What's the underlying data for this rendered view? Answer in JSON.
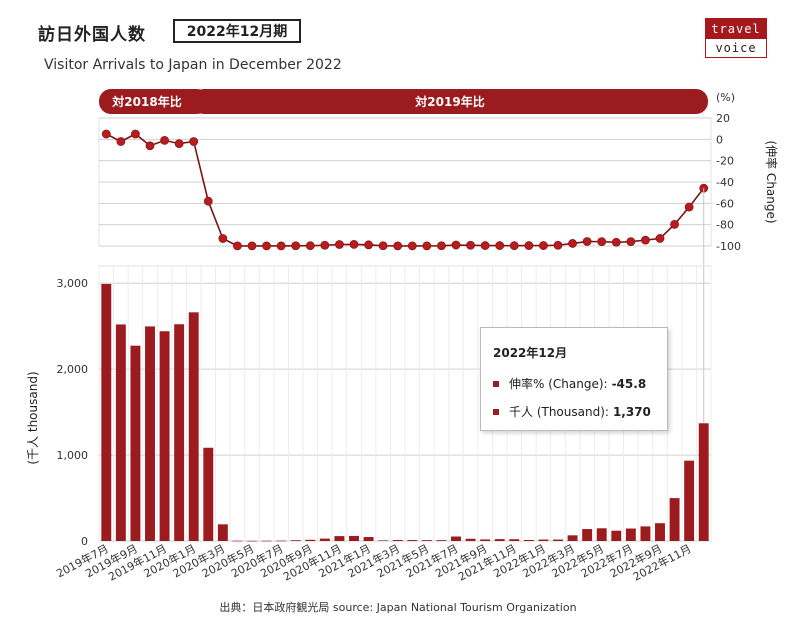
{
  "header": {
    "title_jp": "訪日外国人数",
    "period": "2022年12月期",
    "title_en": "Visitor Arrivals to Japan in December 2022"
  },
  "logo": {
    "line1": "travel",
    "line2": "voice"
  },
  "source": "出典：日本政府観光局  source: Japan National Tourism Organization",
  "tooltip": {
    "title": "2022年12月",
    "change_label": "伸率% (Change):",
    "change_value": "-45.8",
    "thousand_label": "千人 (Thousand):",
    "thousand_value": "1,370"
  },
  "colors": {
    "accent": "#9b1b1e",
    "line": "#7a1416",
    "grid": "#d0d0d0"
  },
  "chart_data": [
    {
      "type": "line",
      "banners": [
        "対2018年比",
        "対2019年比"
      ],
      "yunit": "(%)",
      "ylabel": "(伸率 Change)",
      "ylim": [
        -100,
        20
      ],
      "yticks": [
        20,
        0,
        -20,
        -40,
        -60,
        -80,
        -100
      ],
      "values": [
        5,
        -2,
        5,
        -6,
        -1,
        -4,
        -2,
        -58,
        -93,
        -99.9,
        -99.9,
        -99.9,
        -99.9,
        -99.8,
        -99.7,
        -99.3,
        -98.6,
        -98.5,
        -98.9,
        -99.8,
        -99.9,
        -99.9,
        -99.9,
        -99.8,
        -99.1,
        -99.3,
        -99.6,
        -99.6,
        -99.7,
        -99.6,
        -99.6,
        -99.3,
        -97.6,
        -95.8,
        -95.9,
        -96.5,
        -95.9,
        -94.5,
        -92.9,
        -79.7,
        -63.5,
        -45.8
      ]
    },
    {
      "type": "bar",
      "ylabel": "(千人 thousand)",
      "ylim": [
        0,
        3200
      ],
      "yticks": [
        "3,000",
        "2,000",
        "1,000",
        "0"
      ],
      "ytick_values": [
        3000,
        2000,
        1000,
        0
      ],
      "categories": [
        "2019年7月",
        "2019年8月",
        "2019年9月",
        "2019年10月",
        "2019年11月",
        "2019年12月",
        "2020年1月",
        "2020年2月",
        "2020年3月",
        "2020年4月",
        "2020年5月",
        "2020年6月",
        "2020年7月",
        "2020年8月",
        "2020年9月",
        "2020年10月",
        "2020年11月",
        "2020年12月",
        "2021年1月",
        "2021年2月",
        "2021年3月",
        "2021年4月",
        "2021年5月",
        "2021年6月",
        "2021年7月",
        "2021年8月",
        "2021年9月",
        "2021年10月",
        "2021年11月",
        "2021年12月",
        "2022年1月",
        "2022年2月",
        "2022年3月",
        "2022年4月",
        "2022年5月",
        "2022年6月",
        "2022年7月",
        "2022年8月",
        "2022年9月",
        "2022年10月",
        "2022年11月",
        "2022年12月"
      ],
      "tick_labels": [
        "2019年7月",
        "2019年9月",
        "2019年11月",
        "2020年1月",
        "2020年3月",
        "2020年5月",
        "2020年7月",
        "2020年9月",
        "2020年11月",
        "2021年1月",
        "2021年3月",
        "2021年5月",
        "2021年7月",
        "2021年9月",
        "2021年11月",
        "2022年1月",
        "2022年3月",
        "2022年5月",
        "2022年7月",
        "2022年9月",
        "2022年11月"
      ],
      "values": [
        2991,
        2520,
        2273,
        2497,
        2441,
        2522,
        2661,
        1085,
        194,
        3,
        2,
        3,
        4,
        9,
        14,
        28,
        57,
        59,
        46,
        7,
        12,
        11,
        10,
        10,
        52,
        26,
        18,
        22,
        21,
        12,
        17,
        17,
        66,
        139,
        148,
        120,
        145,
        170,
        207,
        499,
        935,
        1370
      ]
    }
  ]
}
